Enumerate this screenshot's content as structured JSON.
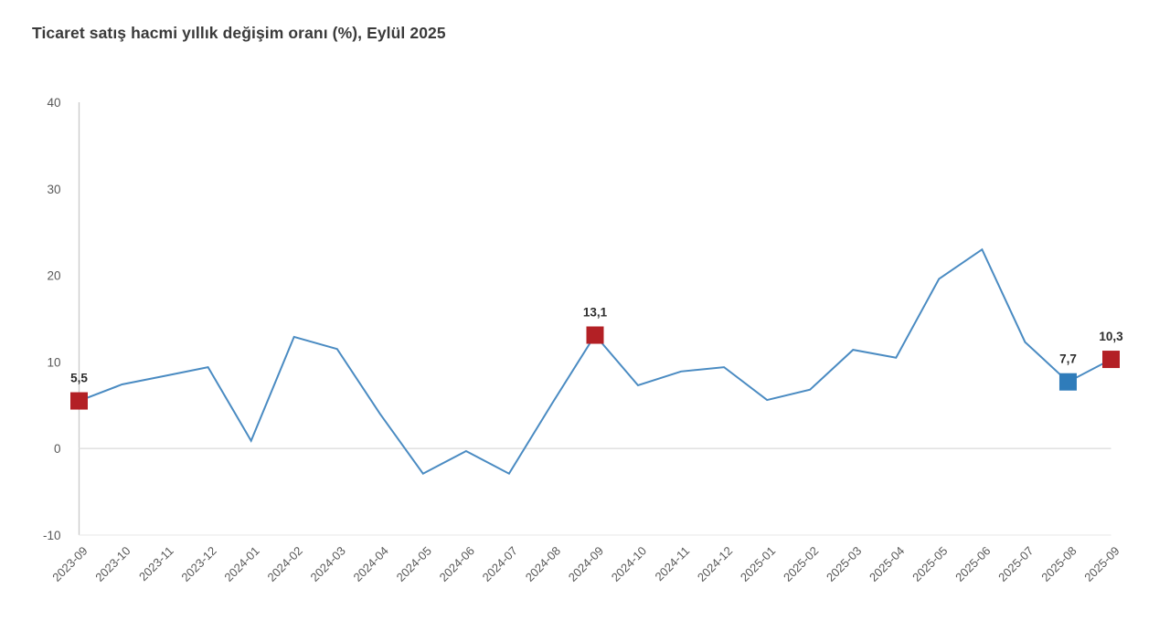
{
  "title": "Ticaret satış hacmi yıllık değişim oranı (%), Eylül 2025",
  "chart_data": {
    "type": "line",
    "title": "Ticaret satış hacmi yıllık değişim oranı (%), Eylül 2025",
    "xlabel": "",
    "ylabel": "",
    "ylim": [
      -10,
      40
    ],
    "yticks": [
      40,
      30,
      20,
      10,
      0,
      -10
    ],
    "grid": "horizontal line at 0 and faint bottom line at -10 only",
    "legend": "none",
    "x": [
      "2023-09",
      "2023-10",
      "2023-11",
      "2023-12",
      "2024-01",
      "2024-02",
      "2024-03",
      "2024-04",
      "2024-05",
      "2024-06",
      "2024-07",
      "2024-08",
      "2024-09",
      "2024-10",
      "2024-11",
      "2024-12",
      "2025-01",
      "2025-02",
      "2025-03",
      "2025-04",
      "2025-05",
      "2025-06",
      "2025-07",
      "2025-08",
      "2025-09"
    ],
    "values": [
      5.5,
      7.4,
      8.4,
      9.4,
      0.9,
      12.9,
      11.5,
      4.0,
      -2.9,
      -0.3,
      -2.9,
      5.2,
      13.1,
      7.3,
      8.9,
      9.4,
      5.6,
      6.8,
      11.4,
      10.5,
      19.6,
      23.0,
      12.3,
      7.7,
      10.3
    ],
    "highlighted_points": [
      {
        "index": 0,
        "x": "2023-09",
        "value": 5.5,
        "label": "5,5",
        "marker_color": "#b32025"
      },
      {
        "index": 12,
        "x": "2024-09",
        "value": 13.1,
        "label": "13,1",
        "marker_color": "#b32025"
      },
      {
        "index": 23,
        "x": "2025-08",
        "value": 7.7,
        "label": "7,7",
        "marker_color": "#2f7cba"
      },
      {
        "index": 24,
        "x": "2025-09",
        "value": 10.3,
        "label": "10,3",
        "marker_color": "#b32025"
      }
    ],
    "colors": {
      "line": "#4a8bc2",
      "marker_red": "#b32025",
      "marker_blue": "#2f7cba",
      "axis_line": "#c9c9c9",
      "zero_gridline": "#e2e2e2",
      "bottom_gridline": "#efefef",
      "title_text": "#3a3a3a",
      "tick_text": "#585858",
      "point_label_text": "#2d2d2d"
    }
  }
}
